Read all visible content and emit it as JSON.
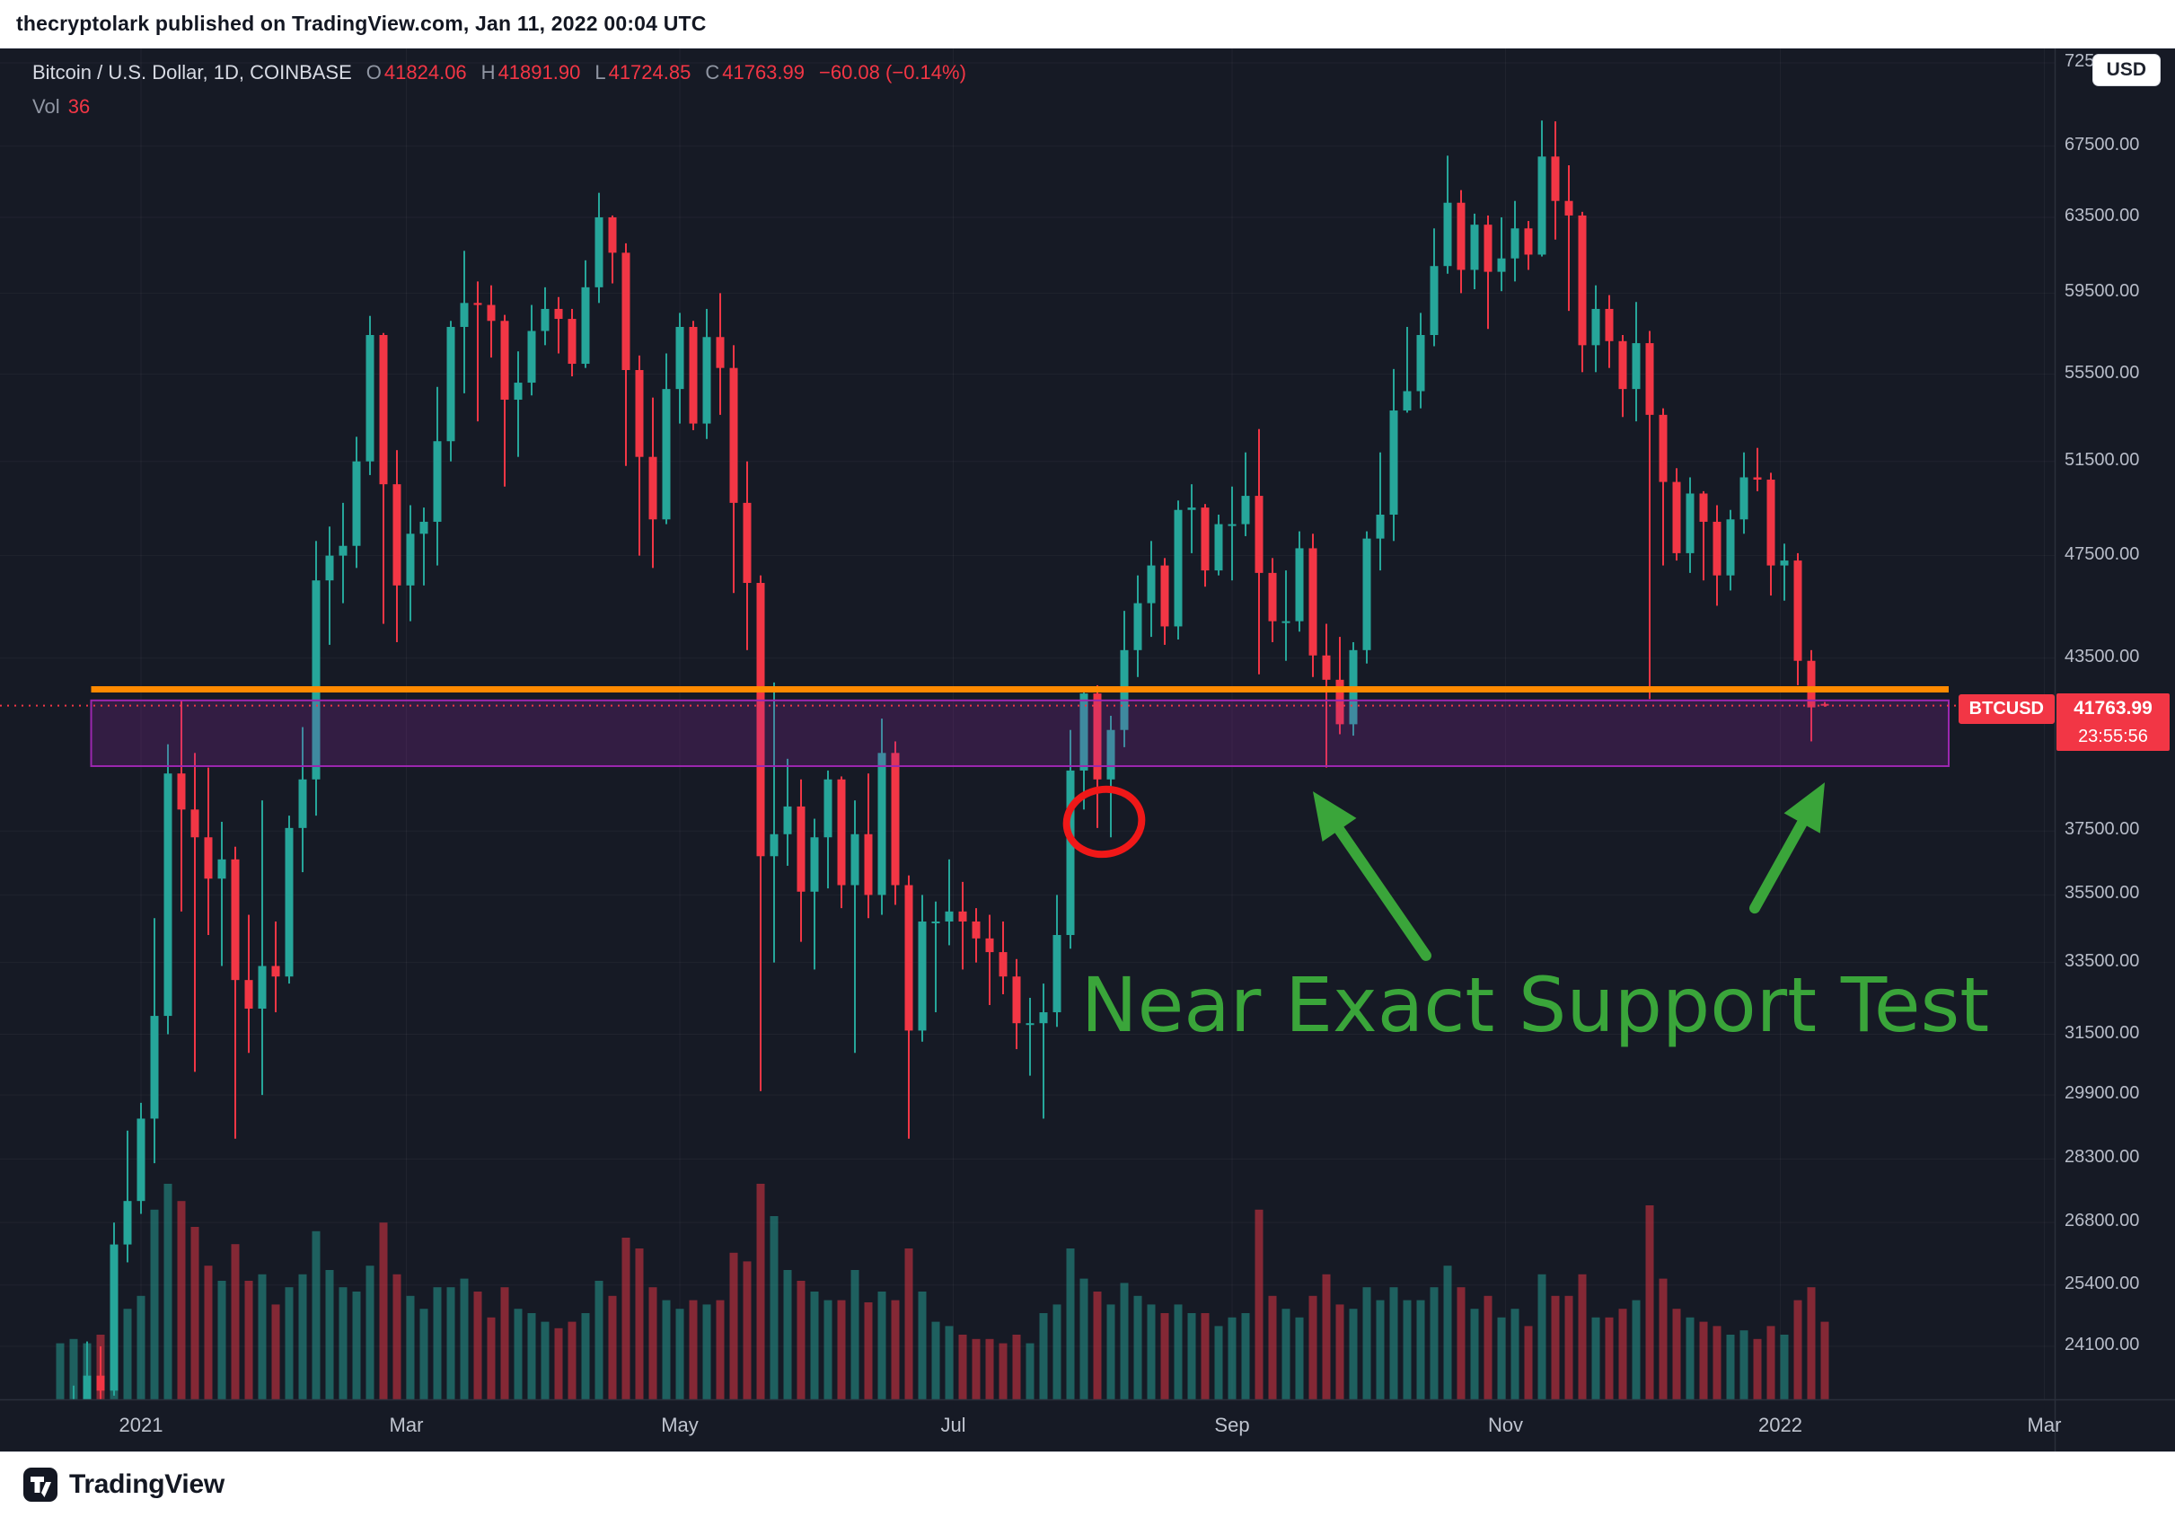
{
  "publish_bar": {
    "text": "thecryptolark published on TradingView.com, Jan 11, 2022 00:04 UTC"
  },
  "legend": {
    "symbol": "Bitcoin / U.S. Dollar, 1D, COINBASE",
    "o_label": "O",
    "o": "41824.06",
    "h_label": "H",
    "h": "41891.90",
    "l_label": "L",
    "l": "41724.85",
    "c_label": "C",
    "c": "41763.99",
    "change": "−60.08 (−0.14%)",
    "vol_label": "Vol",
    "vol_value": "36"
  },
  "axis": {
    "currency_button": "USD",
    "price_ticks": [
      72500,
      67500,
      63500,
      59500,
      55500,
      51500,
      47500,
      43500,
      37500,
      35500,
      33500,
      31500,
      29900,
      28300,
      26800,
      25400,
      24100
    ],
    "time_ticks": [
      {
        "label": "2021",
        "i": 6
      },
      {
        "label": "Mar",
        "i": 25.7
      },
      {
        "label": "May",
        "i": 46
      },
      {
        "label": "Jul",
        "i": 66.3
      },
      {
        "label": "Sep",
        "i": 87
      },
      {
        "label": "Nov",
        "i": 107.3
      },
      {
        "label": "2022",
        "i": 127.7
      },
      {
        "label": "Mar",
        "i": 147.3
      }
    ]
  },
  "price_label": {
    "symbol_tag": "BTCUSD",
    "price": "41763.99",
    "countdown": "23:55:56"
  },
  "footer": {
    "brand": "TradingView"
  },
  "colors": {
    "up": "#26a69a",
    "down": "#f23645",
    "support_line": "#ff8a00",
    "zone": "#9c27b0",
    "annotation_green": "#3aa53a",
    "annotation_red": "#f01818",
    "grid": "rgba(255,255,255,0.045)",
    "axis_sep": "#2a2f3b",
    "badge": "#f23645"
  },
  "chart_data": {
    "type": "candlestick",
    "symbol": "BTCUSD",
    "description": "Bitcoin / U.S. Dollar",
    "exchange": "COINBASE",
    "interval": "1D",
    "scale": "log",
    "start_date": "2020-12-14",
    "step_days": 3,
    "ylim": [
      23000,
      73500
    ],
    "legend_note": "ohlcv rows are [open, high, low, close, relative_volume_0_100] at 3-day resolution",
    "ohlcv": [
      [
        21000,
        22600,
        20800,
        21400,
        26
      ],
      [
        21400,
        23300,
        21300,
        22800,
        28
      ],
      [
        22800,
        24200,
        21900,
        23500,
        26
      ],
      [
        23500,
        24100,
        22600,
        23200,
        30
      ],
      [
        23200,
        26800,
        23100,
        26300,
        38
      ],
      [
        26300,
        29000,
        25900,
        27300,
        42
      ],
      [
        27300,
        29700,
        27000,
        29300,
        48
      ],
      [
        29300,
        34800,
        28200,
        32000,
        88
      ],
      [
        32000,
        40400,
        31500,
        39400,
        100
      ],
      [
        39400,
        41950,
        35000,
        38200,
        92
      ],
      [
        38200,
        40100,
        30500,
        37300,
        80
      ],
      [
        37300,
        39600,
        34300,
        36000,
        62
      ],
      [
        36000,
        37800,
        33400,
        36600,
        55
      ],
      [
        36600,
        37000,
        28800,
        33000,
        72
      ],
      [
        33000,
        34900,
        31000,
        32200,
        55
      ],
      [
        32200,
        38500,
        29900,
        33400,
        58
      ],
      [
        33400,
        34700,
        32100,
        33100,
        44
      ],
      [
        33100,
        38000,
        32900,
        37600,
        52
      ],
      [
        37600,
        41000,
        36200,
        39200,
        58
      ],
      [
        39200,
        48100,
        38000,
        46500,
        78
      ],
      [
        46500,
        48700,
        44000,
        47500,
        60
      ],
      [
        47500,
        49700,
        45600,
        47900,
        52
      ],
      [
        47900,
        52600,
        47000,
        51500,
        50
      ],
      [
        51500,
        58350,
        50900,
        57400,
        62
      ],
      [
        57400,
        57500,
        44800,
        50500,
        82
      ],
      [
        50500,
        52000,
        44100,
        46300,
        58
      ],
      [
        46300,
        49600,
        44900,
        48400,
        48
      ],
      [
        48400,
        49500,
        46300,
        48900,
        42
      ],
      [
        48900,
        54900,
        47100,
        52400,
        52
      ],
      [
        52400,
        58100,
        51500,
        57800,
        52
      ],
      [
        57800,
        61700,
        54600,
        59000,
        56
      ],
      [
        59000,
        60100,
        53300,
        58900,
        50
      ],
      [
        58900,
        59900,
        56300,
        58100,
        38
      ],
      [
        58100,
        58400,
        50400,
        54300,
        52
      ],
      [
        54300,
        56600,
        51700,
        55100,
        42
      ],
      [
        55100,
        58900,
        54500,
        57600,
        40
      ],
      [
        57600,
        59800,
        56900,
        58700,
        36
      ],
      [
        58700,
        59300,
        56500,
        58200,
        33
      ],
      [
        58200,
        58700,
        55400,
        56000,
        36
      ],
      [
        56000,
        61200,
        55800,
        59800,
        40
      ],
      [
        59800,
        64850,
        59000,
        63500,
        55
      ],
      [
        63500,
        63600,
        60000,
        61600,
        48
      ],
      [
        61600,
        62100,
        51300,
        55700,
        75
      ],
      [
        55700,
        56400,
        47500,
        51700,
        70
      ],
      [
        51700,
        54400,
        47000,
        49000,
        52
      ],
      [
        49000,
        56500,
        48800,
        54800,
        46
      ],
      [
        54800,
        58500,
        53200,
        57800,
        42
      ],
      [
        57800,
        58100,
        52900,
        53200,
        46
      ],
      [
        53200,
        58700,
        52500,
        57300,
        44
      ],
      [
        57300,
        59500,
        53600,
        55800,
        46
      ],
      [
        55800,
        56900,
        46000,
        49700,
        68
      ],
      [
        49700,
        51500,
        43800,
        46400,
        64
      ],
      [
        46400,
        46700,
        30000,
        36700,
        100
      ],
      [
        36700,
        42600,
        33500,
        37400,
        85
      ],
      [
        37400,
        39900,
        36400,
        38300,
        60
      ],
      [
        38300,
        39200,
        34100,
        35600,
        55
      ],
      [
        35600,
        37900,
        33300,
        37300,
        50
      ],
      [
        37300,
        39500,
        35700,
        39200,
        46
      ],
      [
        39200,
        39300,
        35100,
        35800,
        46
      ],
      [
        35800,
        38500,
        31000,
        37400,
        60
      ],
      [
        37400,
        39400,
        34800,
        35500,
        45
      ],
      [
        35500,
        41300,
        34900,
        40100,
        50
      ],
      [
        40100,
        40500,
        35200,
        35800,
        46
      ],
      [
        35800,
        36100,
        28800,
        31600,
        70
      ],
      [
        31600,
        35500,
        31300,
        34700,
        50
      ],
      [
        34700,
        35300,
        32100,
        34700,
        36
      ],
      [
        34700,
        36600,
        34000,
        35000,
        34
      ],
      [
        35000,
        35900,
        33300,
        34700,
        30
      ],
      [
        34700,
        35100,
        33500,
        34200,
        28
      ],
      [
        34200,
        34900,
        32300,
        33800,
        28
      ],
      [
        33800,
        34700,
        32600,
        33100,
        26
      ],
      [
        33100,
        33600,
        31100,
        31800,
        30
      ],
      [
        31800,
        32500,
        30400,
        31800,
        26
      ],
      [
        31800,
        32900,
        29300,
        32100,
        40
      ],
      [
        32100,
        35500,
        31700,
        34300,
        44
      ],
      [
        34300,
        40900,
        33900,
        39500,
        70
      ],
      [
        39500,
        42300,
        38200,
        42200,
        56
      ],
      [
        42200,
        42500,
        37600,
        39200,
        50
      ],
      [
        39200,
        41400,
        37300,
        40900,
        44
      ],
      [
        40900,
        45300,
        40300,
        43800,
        54
      ],
      [
        43800,
        46700,
        42800,
        45600,
        48
      ],
      [
        45600,
        48100,
        44300,
        47100,
        44
      ],
      [
        47100,
        47400,
        44000,
        44700,
        40
      ],
      [
        44700,
        49800,
        44200,
        49400,
        44
      ],
      [
        49400,
        50500,
        47600,
        49500,
        40
      ],
      [
        49500,
        49650,
        46250,
        46900,
        40
      ],
      [
        46900,
        49200,
        46700,
        48800,
        34
      ],
      [
        48800,
        50400,
        46500,
        48800,
        38
      ],
      [
        48800,
        51900,
        48300,
        50000,
        40
      ],
      [
        50000,
        52950,
        42900,
        46800,
        88
      ],
      [
        46800,
        47400,
        44100,
        44900,
        48
      ],
      [
        44900,
        46900,
        43400,
        44900,
        42
      ],
      [
        44900,
        48500,
        44500,
        47800,
        38
      ],
      [
        47800,
        48400,
        42800,
        43600,
        48
      ],
      [
        43600,
        44800,
        39600,
        42700,
        58
      ],
      [
        42700,
        44300,
        40750,
        41100,
        44
      ],
      [
        41100,
        44100,
        40700,
        43800,
        42
      ],
      [
        43800,
        48500,
        43300,
        48200,
        52
      ],
      [
        48200,
        51900,
        46900,
        49200,
        46
      ],
      [
        49200,
        55750,
        48100,
        53800,
        52
      ],
      [
        53800,
        57800,
        53700,
        54700,
        46
      ],
      [
        54700,
        58500,
        53900,
        57400,
        46
      ],
      [
        57400,
        62900,
        56850,
        60900,
        52
      ],
      [
        60900,
        66950,
        60500,
        64300,
        62
      ],
      [
        64300,
        65000,
        59500,
        60700,
        52
      ],
      [
        60700,
        63700,
        59700,
        63100,
        42
      ],
      [
        63100,
        63600,
        57700,
        60600,
        48
      ],
      [
        60600,
        63500,
        59600,
        61300,
        38
      ],
      [
        61300,
        64400,
        60100,
        62900,
        42
      ],
      [
        62900,
        63300,
        60700,
        61500,
        34
      ],
      [
        61500,
        69000,
        61400,
        66900,
        58
      ],
      [
        66900,
        68950,
        62300,
        64400,
        48
      ],
      [
        64400,
        66400,
        58600,
        63600,
        48
      ],
      [
        63600,
        63800,
        55600,
        56900,
        58
      ],
      [
        56900,
        59900,
        55600,
        58700,
        38
      ],
      [
        58700,
        59400,
        55800,
        57100,
        38
      ],
      [
        57100,
        57400,
        53500,
        54800,
        42
      ],
      [
        54800,
        59050,
        53300,
        57000,
        46
      ],
      [
        57000,
        57600,
        42000,
        53600,
        90
      ],
      [
        53600,
        53900,
        47100,
        50600,
        56
      ],
      [
        50600,
        51200,
        47300,
        47600,
        42
      ],
      [
        47600,
        50800,
        46800,
        50100,
        38
      ],
      [
        50100,
        50200,
        46500,
        48900,
        36
      ],
      [
        48900,
        49600,
        45500,
        46700,
        34
      ],
      [
        46700,
        49400,
        46100,
        49000,
        30
      ],
      [
        49000,
        51900,
        48400,
        50800,
        32
      ],
      [
        50800,
        52100,
        50200,
        50700,
        28
      ],
      [
        50700,
        51000,
        45900,
        47100,
        34
      ],
      [
        47100,
        47990,
        45700,
        47300,
        30
      ],
      [
        47300,
        47600,
        42500,
        43400,
        46
      ],
      [
        43400,
        43800,
        40500,
        41700,
        52
      ],
      [
        41824.06,
        41891.9,
        41724.85,
        41763.99,
        36
      ]
    ],
    "overlays": {
      "support_line": {
        "price": 42350,
        "x_start_i": 2.3,
        "x_end_i": 140.2,
        "color": "#ff8a00",
        "width": 7
      },
      "support_zone": {
        "price_top": 41950,
        "price_bottom": 39650,
        "x_start_i": 2.3,
        "x_end_i": 140.2,
        "color": "#9c27b0",
        "fill_opacity": 0.22
      },
      "last_price_line": {
        "price": 41763.99,
        "style": "dotted"
      },
      "circle": {
        "center_i": 77.5,
        "center_price": 37800,
        "rx": 42,
        "ry": 36,
        "color": "#f01818"
      },
      "arrows": [
        {
          "from_i": 101.4,
          "from_price": 33700,
          "to_i": 93.0,
          "to_price": 38800
        },
        {
          "from_i": 125.8,
          "from_price": 35100,
          "to_i": 131.0,
          "to_price": 39100
        }
      ],
      "label": {
        "text": "Near Exact Support Test",
        "center_i": 109.5,
        "center_price": 32300,
        "color": "#3aa53a",
        "font_size": 84
      }
    }
  }
}
